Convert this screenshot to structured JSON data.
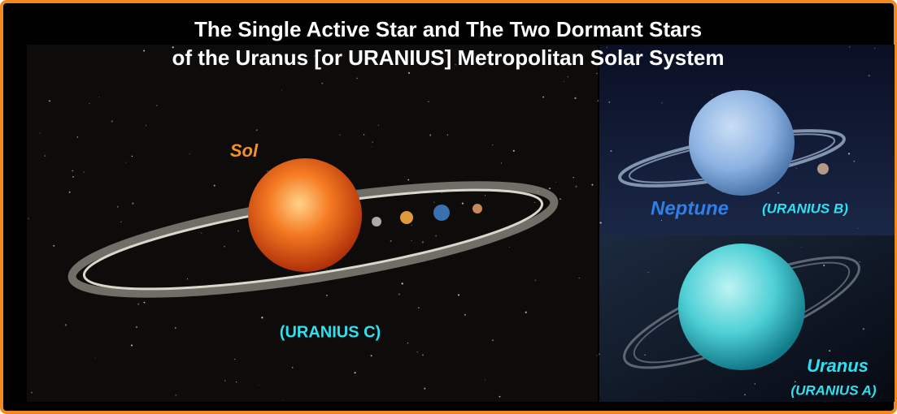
{
  "title": [
    "The Single Active Star and The Two Dormant Stars",
    "of the Uranus [or URANIUS] Metropolitan Solar System"
  ],
  "labels": {
    "sol": "Sol",
    "sol_name": "(URANIUS C)",
    "neptune": "Neptune",
    "neptune_name": "(URANIUS B)",
    "uranus": "Uranus",
    "uranus_name": "(URANIUS A)"
  }
}
